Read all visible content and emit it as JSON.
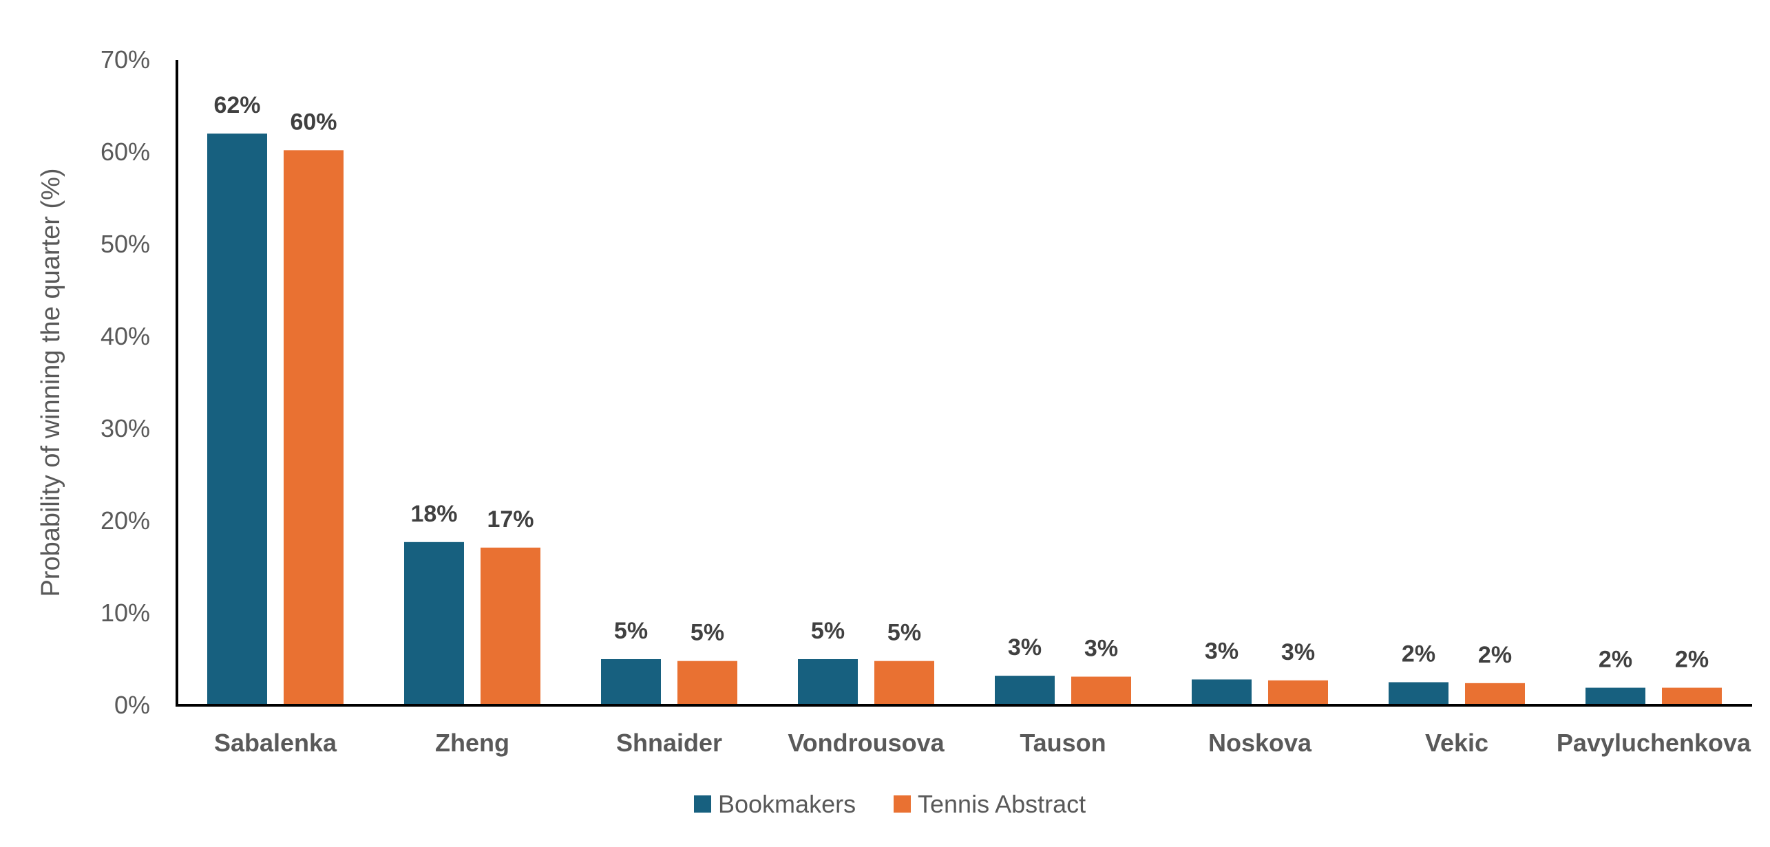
{
  "chart_data": {
    "type": "bar",
    "title": "",
    "xlabel": "",
    "ylabel": "Probability of winning the quarter (%)",
    "ylim": [
      0,
      70
    ],
    "yticks": [
      0,
      10,
      20,
      30,
      40,
      50,
      60,
      70
    ],
    "ytick_labels": [
      "0%",
      "10%",
      "20%",
      "30%",
      "40%",
      "50%",
      "60%",
      "70%"
    ],
    "grid": false,
    "legend": "bottom",
    "categories": [
      "Sabalenka",
      "Zheng",
      "Shnaider",
      "Vondrousova",
      "Tauson",
      "Noskova",
      "Vekic",
      "Pavyluchenkova"
    ],
    "series": [
      {
        "name": "Bookmakers",
        "color": "#17607F",
        "values": [
          62,
          17.7,
          5,
          5,
          3.2,
          2.8,
          2.5,
          1.9
        ],
        "labels": [
          "62%",
          "18%",
          "5%",
          "5%",
          "3%",
          "3%",
          "2%",
          "2%"
        ]
      },
      {
        "name": "Tennis Abstract",
        "color": "#E97132",
        "values": [
          60.2,
          17.1,
          4.8,
          4.8,
          3.1,
          2.7,
          2.4,
          1.9
        ],
        "labels": [
          "60%",
          "17%",
          "5%",
          "5%",
          "3%",
          "3%",
          "2%",
          "2%"
        ]
      }
    ]
  }
}
